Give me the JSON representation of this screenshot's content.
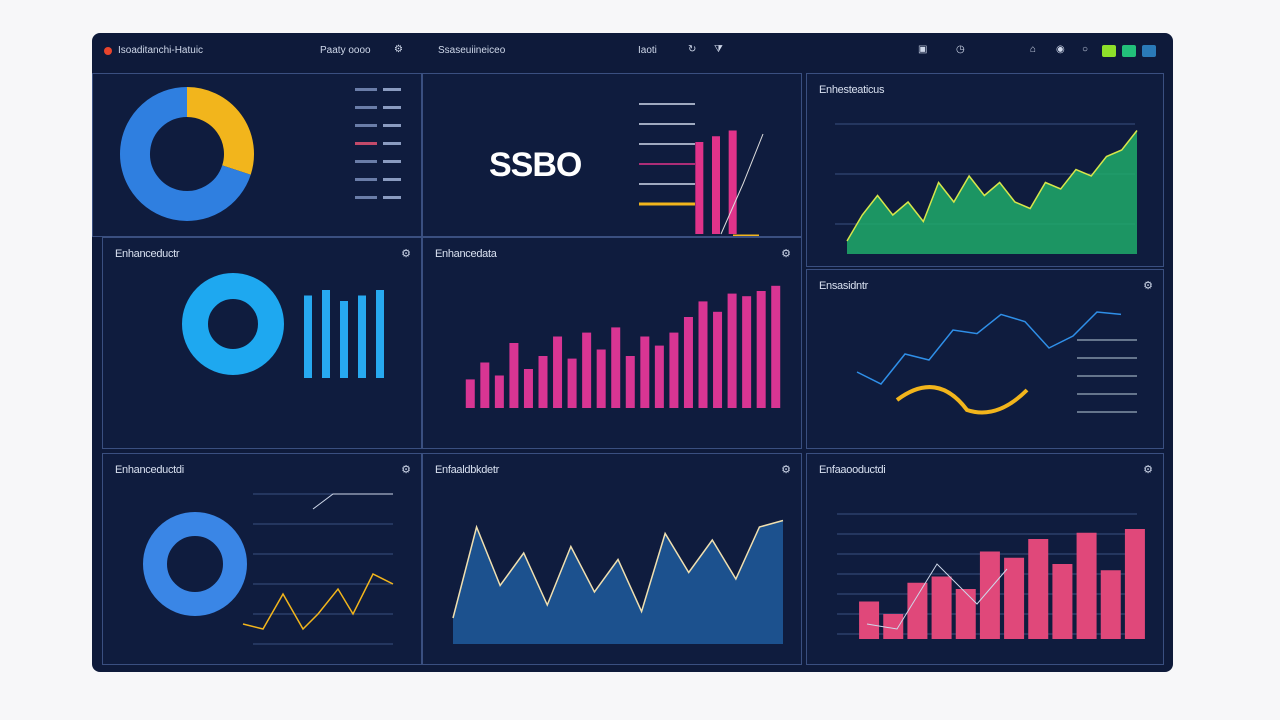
{
  "header": {
    "left_title": "Isoaditanchi-Hatuic",
    "left_meta": "Paaty oooo",
    "mid_title": "Ssaseuiineiceo",
    "mid_meta": "Iaoti",
    "colors": {
      "bg": "#0e1a3a",
      "accent_green": "#39d353",
      "accent_pink": "#e0338a",
      "accent_blue": "#2f8fe8",
      "accent_yellow": "#f2b51c"
    }
  },
  "panels": {
    "p1": {
      "title": "",
      "icon": "settings-icon"
    },
    "p2": {
      "big_value": "SSBO"
    },
    "p3": {
      "title": "Enhesteaticus"
    },
    "p4": {
      "title": "Enhanceductr"
    },
    "p5": {
      "title": "Enhancedata"
    },
    "p6": {
      "title": "Ensasidntr"
    },
    "p7": {
      "title": "Enhanceductdi"
    },
    "p8": {
      "title": "Enfaaldbkdetr"
    },
    "p9": {
      "title": "Enfaaooductdi"
    }
  },
  "chart_data": [
    {
      "type": "pie",
      "donut": true,
      "values": [
        30,
        70
      ],
      "colors": [
        "#f2b51c",
        "#2f7fe0"
      ]
    },
    {
      "type": "bar",
      "values": [
        80,
        85,
        90
      ],
      "colors": [
        "#e0338a"
      ]
    },
    {
      "type": "area",
      "values": [
        10,
        30,
        45,
        30,
        40,
        25,
        55,
        40,
        60,
        45,
        55,
        40,
        35,
        55,
        50,
        65,
        60,
        75,
        80,
        95
      ],
      "color": "#1faa6a"
    },
    {
      "type": "bar",
      "values": [
        75,
        80,
        70,
        75,
        80
      ],
      "color": "#27a9f0"
    },
    {
      "type": "bar",
      "values": [
        22,
        35,
        25,
        50,
        30,
        40,
        55,
        38,
        58,
        45,
        62,
        40,
        55,
        48,
        58,
        70,
        82,
        74,
        88,
        86,
        90,
        94
      ],
      "color": "#d83593"
    },
    {
      "type": "line",
      "values": [
        40,
        30,
        55,
        50,
        75,
        72,
        88,
        82,
        60,
        70,
        90,
        88
      ],
      "color": "#2f8fe8"
    },
    {
      "type": "pie",
      "donut": true,
      "values": [
        100
      ],
      "colors": [
        "#3a86e6"
      ]
    },
    {
      "type": "area",
      "values": [
        20,
        90,
        45,
        70,
        30,
        75,
        40,
        65,
        25,
        85,
        55,
        80,
        50,
        90,
        95
      ],
      "color": "#1f5a9c"
    },
    {
      "type": "bar",
      "values": [
        30,
        20,
        45,
        50,
        40,
        70,
        65,
        80,
        60,
        85,
        55,
        88
      ],
      "color": "#e0487a"
    }
  ]
}
